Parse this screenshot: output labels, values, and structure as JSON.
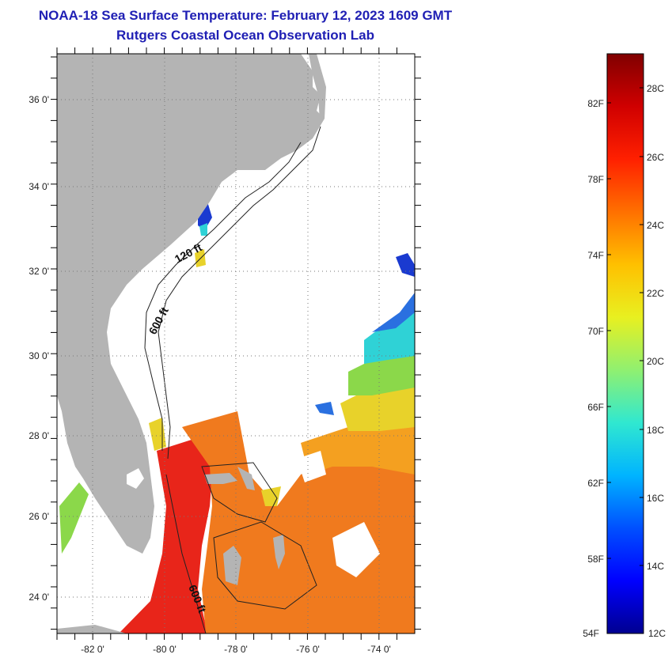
{
  "header": {
    "title": "NOAA-18 Sea Surface Temperature:  February 12, 2023 1609 GMT",
    "subtitle": "Rutgers Coastal Ocean Observation Lab"
  },
  "map": {
    "lon_range": [
      -83,
      -73
    ],
    "lat_range": [
      23,
      37
    ],
    "lon_ticks": [
      "-82 0'",
      "-80 0'",
      "-78 0'",
      "-76 0'",
      "-74 0'"
    ],
    "lat_ticks": [
      "36 0'",
      "34 0'",
      "32 0'",
      "30 0'",
      "28 0'",
      "26 0'",
      "24 0'"
    ],
    "contour_labels": {
      "isobath_120": "120 ft",
      "isobath_600_north": "600 ft",
      "isobath_600_south": "600 ft"
    },
    "colors": {
      "land": "#b4b4b4",
      "water_no_data": "#ffffff",
      "warm": "#e8251a",
      "orange": "#f07a1e",
      "yellow": "#e8d22a",
      "green": "#8bd84a",
      "cyan": "#2fd2d6",
      "blue": "#1a3ad0"
    }
  },
  "colorbar": {
    "fahrenheit": [
      "82F",
      "78F",
      "74F",
      "70F",
      "66F",
      "62F",
      "58F",
      "54F"
    ],
    "celsius": [
      "28C",
      "26C",
      "24C",
      "22C",
      "20C",
      "18C",
      "16C",
      "14C",
      "12C"
    ],
    "stops": [
      "#000090",
      "#0000ff",
      "#0050ff",
      "#00b4ff",
      "#30e8d0",
      "#90f070",
      "#e8f020",
      "#ffc000",
      "#ff7000",
      "#ff2000",
      "#d00000",
      "#800000"
    ]
  }
}
